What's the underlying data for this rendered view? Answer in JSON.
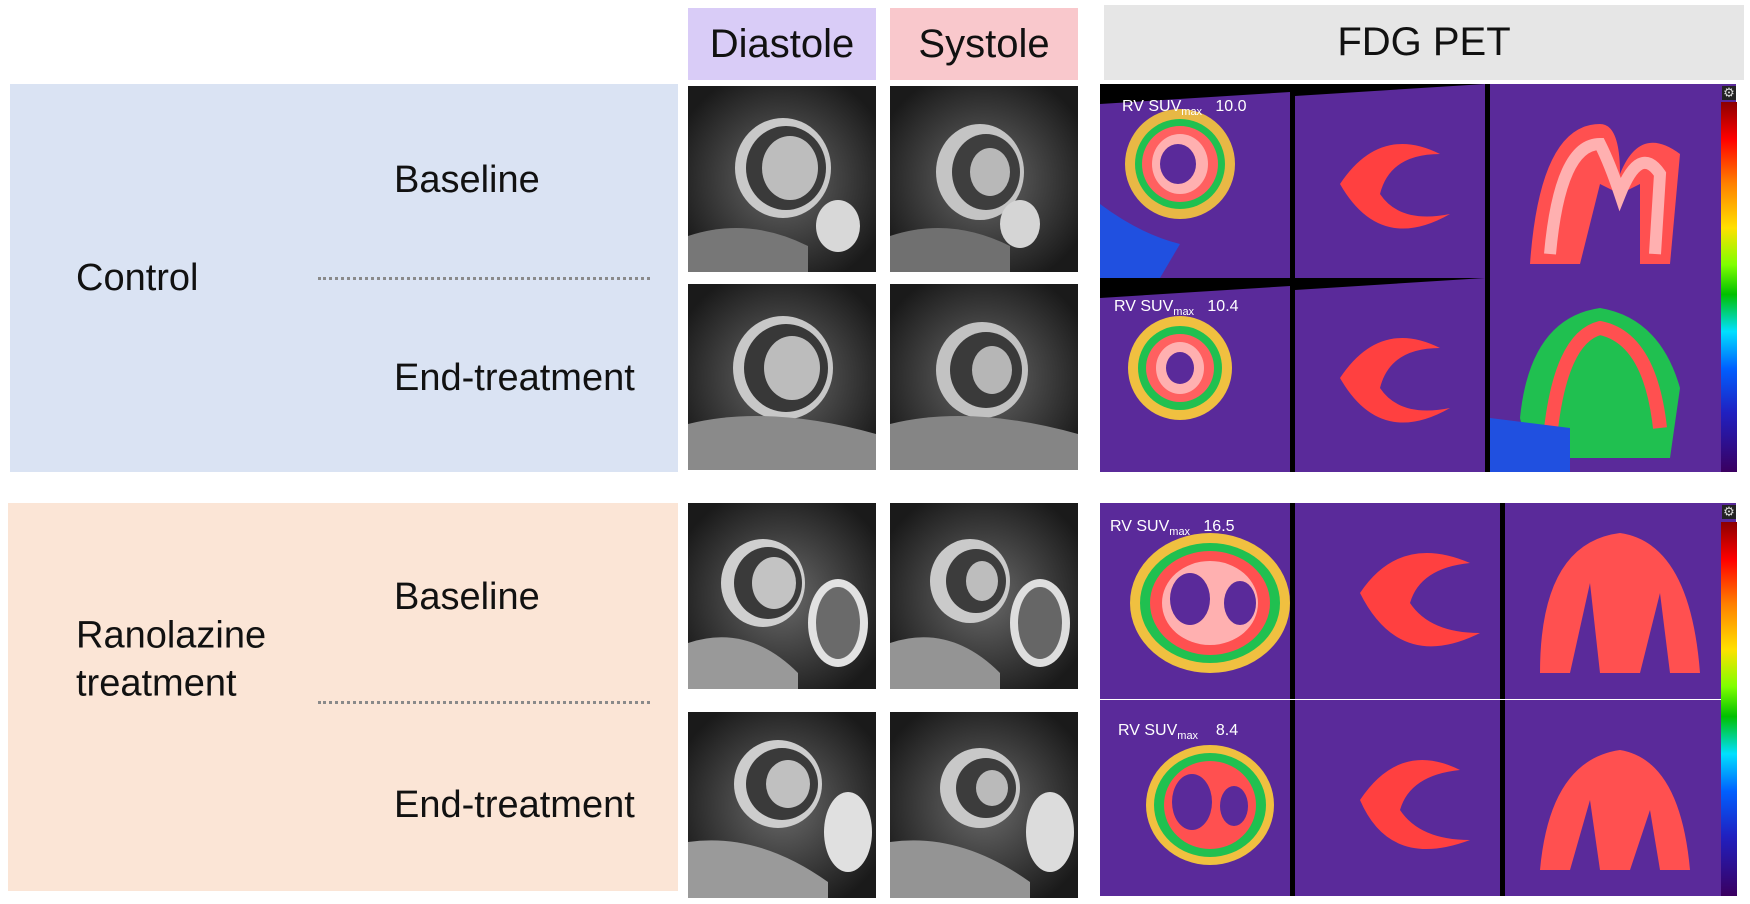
{
  "headers": {
    "diastole": "Diastole",
    "systole": "Systole",
    "pet": "FDG PET"
  },
  "groups": [
    {
      "label": "Control",
      "rows": [
        "Baseline",
        "End-treatment"
      ]
    },
    {
      "label": "Ranolazine\ntreatment",
      "rows": [
        "Baseline",
        "End-treatment"
      ]
    }
  ],
  "pet": {
    "suv_prefix": "RV SUV",
    "suv_sub": "max",
    "values": [
      "10.0",
      "10.4",
      "16.5",
      "8.4"
    ]
  },
  "colors": {
    "control_bg": "#dae3f3",
    "ranolazine_bg": "#fbe5d6",
    "diastole_header": "#d9ccf7",
    "systole_header": "#f9c8cc",
    "pet_header": "#e6e6e6"
  }
}
